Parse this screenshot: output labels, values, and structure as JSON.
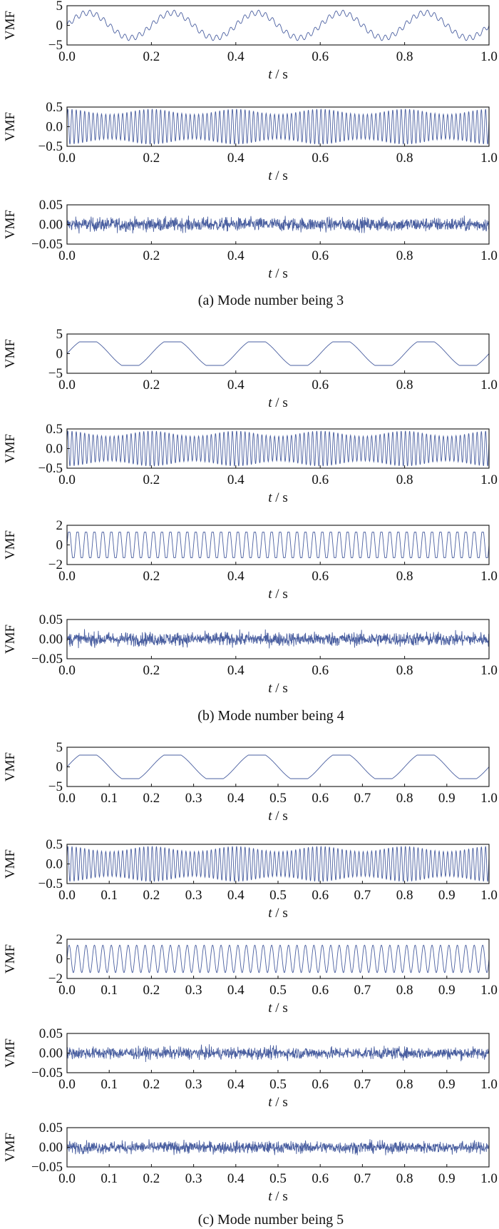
{
  "ylabel": "VMF",
  "xlabel_var": "t",
  "xlabel_unit": " / s",
  "line_color": "#4a5fa0",
  "groups": [
    {
      "caption": "(a) Mode number being 3",
      "panels": [
        {
          "yticks": [
            "5",
            "0",
            "−5"
          ],
          "xticks": [
            "0.0",
            "0.2",
            "0.4",
            "0.6",
            "0.8",
            "1.0"
          ]
        },
        {
          "yticks": [
            "0.5",
            "0.0",
            "−0.5"
          ],
          "xticks": [
            "0.0",
            "0.2",
            "0.4",
            "0.6",
            "0.8",
            "1.0"
          ]
        },
        {
          "yticks": [
            "0.05",
            "0.00",
            "−0.05"
          ],
          "xticks": [
            "0.0",
            "0.2",
            "0.4",
            "0.6",
            "0.8",
            "1.0"
          ]
        }
      ]
    },
    {
      "caption": "(b) Mode number being 4",
      "panels": [
        {
          "yticks": [
            "5",
            "0",
            "−5"
          ],
          "xticks": [
            "0.0",
            "0.2",
            "0.4",
            "0.6",
            "0.8",
            "1.0"
          ]
        },
        {
          "yticks": [
            "0.5",
            "0.0",
            "−0.5"
          ],
          "xticks": [
            "0.0",
            "0.2",
            "0.4",
            "0.6",
            "0.8",
            "1.0"
          ]
        },
        {
          "yticks": [
            "2",
            "0",
            "−2"
          ],
          "xticks": [
            "0.0",
            "0.2",
            "0.4",
            "0.6",
            "0.8",
            "1.0"
          ]
        },
        {
          "yticks": [
            "0.05",
            "0.00",
            "−0.05"
          ],
          "xticks": [
            "0.0",
            "0.2",
            "0.4",
            "0.6",
            "0.8",
            "1.0"
          ]
        }
      ]
    },
    {
      "caption": "(c) Mode number being 5",
      "panels": [
        {
          "yticks": [
            "5",
            "0",
            "−5"
          ],
          "xticks": [
            "0.0",
            "0.1",
            "0.2",
            "0.3",
            "0.4",
            "0.5",
            "0.6",
            "0.7",
            "0.8",
            "0.9",
            "1.0"
          ]
        },
        {
          "yticks": [
            "0.5",
            "0.0",
            "−0.5"
          ],
          "xticks": [
            "0.0",
            "0.1",
            "0.2",
            "0.3",
            "0.4",
            "0.5",
            "0.6",
            "0.7",
            "0.8",
            "0.9",
            "1.0"
          ]
        },
        {
          "yticks": [
            "2",
            "0",
            "−2"
          ],
          "xticks": [
            "0.0",
            "0.1",
            "0.2",
            "0.3",
            "0.4",
            "0.5",
            "0.6",
            "0.7",
            "0.8",
            "0.9",
            "1.0"
          ]
        },
        {
          "yticks": [
            "0.05",
            "0.00",
            "−0.05"
          ],
          "xticks": [
            "0.0",
            "0.1",
            "0.2",
            "0.3",
            "0.4",
            "0.5",
            "0.6",
            "0.7",
            "0.8",
            "0.9",
            "1.0"
          ]
        },
        {
          "yticks": [
            "0.05",
            "0.00",
            "−0.05"
          ],
          "xticks": [
            "0.0",
            "0.1",
            "0.2",
            "0.3",
            "0.4",
            "0.5",
            "0.6",
            "0.7",
            "0.8",
            "0.9",
            "1.0"
          ]
        }
      ]
    }
  ],
  "chart_data": [
    {
      "type": "line",
      "panel": "a1",
      "signal": "5 Hz sinusoid with small 60 Hz ripple",
      "x_range": [
        0,
        1
      ],
      "ylim": [
        -5,
        5
      ],
      "amplitude": 3.2,
      "freq_hz": 5,
      "ripple_amp": 0.7,
      "ripple_freq_hz": 60
    },
    {
      "type": "line",
      "panel": "a2",
      "signal": "high-frequency oscillation",
      "x_range": [
        0,
        1
      ],
      "ylim": [
        -0.5,
        0.5
      ],
      "amplitude": 0.45,
      "freq_hz": 100
    },
    {
      "type": "line",
      "panel": "a3",
      "signal": "noise",
      "x_range": [
        0,
        1
      ],
      "ylim": [
        -0.05,
        0.05
      ],
      "amplitude": 0.015
    },
    {
      "type": "line",
      "panel": "b1",
      "signal": "5 Hz clipped sinusoid",
      "x_range": [
        0,
        1
      ],
      "ylim": [
        -5,
        5
      ],
      "amplitude": 3.0,
      "freq_hz": 5
    },
    {
      "type": "line",
      "panel": "b2",
      "signal": "high-frequency oscillation",
      "x_range": [
        0,
        1
      ],
      "ylim": [
        -0.5,
        0.5
      ],
      "amplitude": 0.45,
      "freq_hz": 100
    },
    {
      "type": "line",
      "panel": "b3",
      "signal": "50 Hz clipped sinusoid",
      "x_range": [
        0,
        1
      ],
      "ylim": [
        -2,
        2
      ],
      "amplitude": 1.3,
      "freq_hz": 50
    },
    {
      "type": "line",
      "panel": "b4",
      "signal": "noise",
      "x_range": [
        0,
        1
      ],
      "ylim": [
        -0.05,
        0.05
      ],
      "amplitude": 0.015
    },
    {
      "type": "line",
      "panel": "c1",
      "signal": "5 Hz clipped sinusoid",
      "x_range": [
        0,
        1
      ],
      "ylim": [
        -5,
        5
      ],
      "amplitude": 3.0,
      "freq_hz": 5
    },
    {
      "type": "line",
      "panel": "c2",
      "signal": "high-frequency oscillation",
      "x_range": [
        0,
        1
      ],
      "ylim": [
        -0.5,
        0.5
      ],
      "amplitude": 0.45,
      "freq_hz": 100
    },
    {
      "type": "line",
      "panel": "c3",
      "signal": "50 Hz sinusoid",
      "x_range": [
        0,
        1
      ],
      "ylim": [
        -2,
        2
      ],
      "amplitude": 1.4,
      "freq_hz": 50
    },
    {
      "type": "line",
      "panel": "c4",
      "signal": "noise",
      "x_range": [
        0,
        1
      ],
      "ylim": [
        -0.05,
        0.05
      ],
      "amplitude": 0.013
    },
    {
      "type": "line",
      "panel": "c5",
      "signal": "noise",
      "x_range": [
        0,
        1
      ],
      "ylim": [
        -0.05,
        0.05
      ],
      "amplitude": 0.013
    }
  ]
}
